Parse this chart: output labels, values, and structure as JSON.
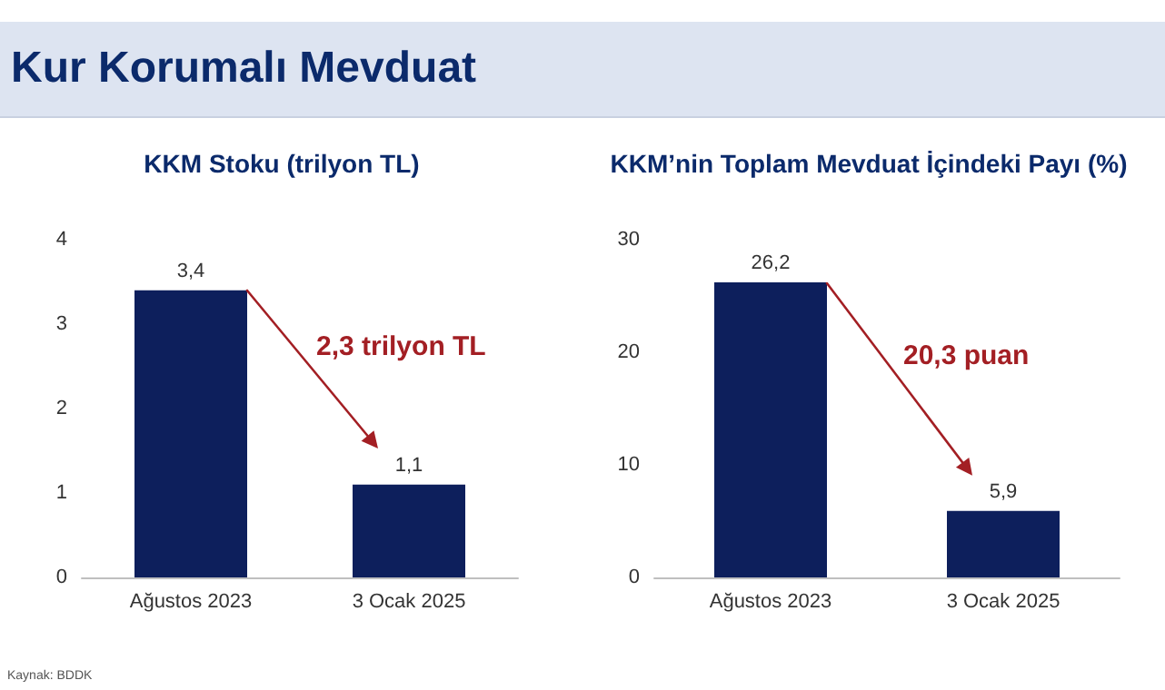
{
  "chart_data": [
    {
      "type": "other",
      "title": "Kur Korumalı Mevduat"
    },
    {
      "type": "bar",
      "title": "KKM Stoku (trilyon TL)",
      "categories": [
        "Ağustos 2023",
        "3 Ocak 2025"
      ],
      "values": [
        3.4,
        1.1
      ],
      "value_labels": [
        "3,4",
        "1,1"
      ],
      "color": "#0d1f5c",
      "ylim": [
        0,
        4
      ],
      "yticks": [
        0,
        1,
        2,
        3,
        4
      ],
      "grid": false,
      "annotations": [
        "2,3 trilyon TL",
        "Kaynak: BDDK"
      ]
    },
    {
      "type": "bar",
      "title": "KKM’nin Toplam Mevduat İçindeki Payı (%)",
      "categories": [
        "Ağustos 2023",
        "3 Ocak 2025"
      ],
      "values": [
        26.2,
        5.9
      ],
      "value_labels": [
        "26,2",
        "5,9"
      ],
      "color": "#0d1f5c",
      "ylim": [
        0,
        30
      ],
      "yticks": [
        0,
        10,
        20,
        30
      ],
      "grid": false,
      "annotations": [
        "20,3 puan"
      ]
    }
  ]
}
